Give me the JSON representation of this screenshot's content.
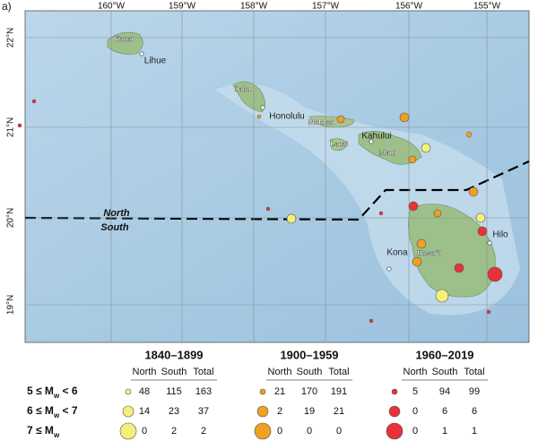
{
  "panel_label": "a)",
  "longitudes": [
    "160°W",
    "159°W",
    "158°W",
    "157°W",
    "156°W",
    "155°W"
  ],
  "latitudes": [
    "22°N",
    "21°N",
    "20°N",
    "19°N"
  ],
  "islands": [
    "Kauai",
    "Oahu",
    "Molokai",
    "Lanai",
    "Maui",
    "Hawai‘i"
  ],
  "towns": [
    "Lihue",
    "Honolulu",
    "Kahului",
    "Kona",
    "Hilo"
  ],
  "boundary": {
    "north": "North",
    "south": "South"
  },
  "legend": {
    "columns": [
      "North",
      "South",
      "Total"
    ],
    "magnitudes": [
      {
        "lhs": "5 ≤ M",
        "sub": "w",
        "rhs": " < 6"
      },
      {
        "lhs": "6 ≤ M",
        "sub": "w",
        "rhs": " < 7"
      },
      {
        "lhs": "7 ≤ M",
        "sub": "w"
      }
    ],
    "periods": [
      {
        "title": "1840–1899",
        "rows": [
          [
            48,
            115,
            163
          ],
          [
            14,
            23,
            37
          ],
          [
            0,
            2,
            2
          ]
        ]
      },
      {
        "title": "1900–1959",
        "rows": [
          [
            21,
            170,
            191
          ],
          [
            2,
            19,
            21
          ],
          [
            0,
            0,
            0
          ]
        ]
      },
      {
        "title": "1960–2019",
        "rows": [
          [
            5,
            94,
            99
          ],
          [
            0,
            6,
            6
          ],
          [
            0,
            1,
            1
          ]
        ]
      }
    ]
  }
}
